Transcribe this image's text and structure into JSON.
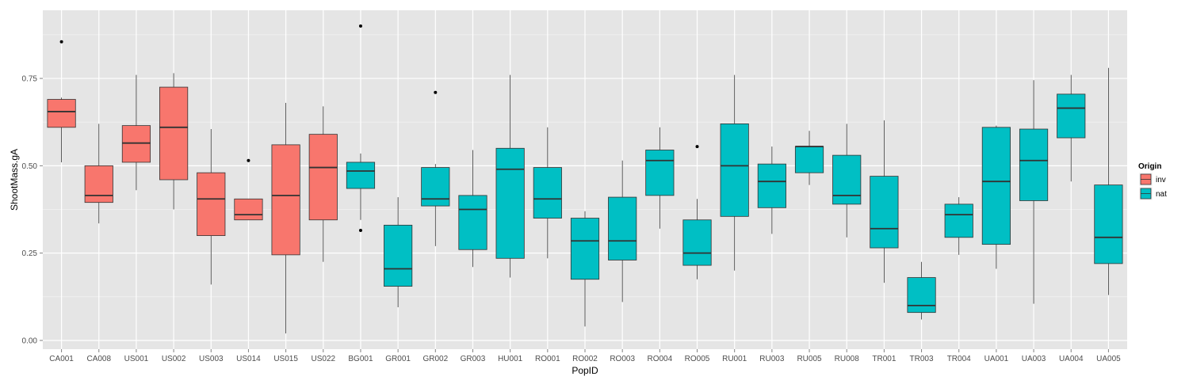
{
  "chart_data": {
    "type": "boxplot",
    "title": "",
    "xlabel": "PopID",
    "ylabel": "ShootMass.gA",
    "ylim": [
      -0.025,
      0.945
    ],
    "yticks": [
      0.0,
      0.25,
      0.5,
      0.75
    ],
    "ytick_labels": [
      "0.00",
      "0.25",
      "0.50",
      "0.75"
    ],
    "grid": true,
    "legend": {
      "title": "Origin",
      "placement": "right",
      "entries": [
        {
          "label": "inv",
          "color": "#F8766D"
        },
        {
          "label": "nat",
          "color": "#00BFC4"
        }
      ]
    },
    "colors": {
      "inv": "#F8766D",
      "nat": "#00BFC4",
      "panel": "#E5E5E5",
      "grid": "#FFFFFF"
    },
    "boxes": [
      {
        "category": "CA001",
        "group": "inv",
        "whisker_low": 0.51,
        "q1": 0.61,
        "median": 0.655,
        "q3": 0.69,
        "whisker_high": 0.695,
        "outliers": [
          0.855
        ]
      },
      {
        "category": "CA008",
        "group": "inv",
        "whisker_low": 0.335,
        "q1": 0.395,
        "median": 0.415,
        "q3": 0.5,
        "whisker_high": 0.62,
        "outliers": []
      },
      {
        "category": "US001",
        "group": "inv",
        "whisker_low": 0.43,
        "q1": 0.51,
        "median": 0.565,
        "q3": 0.615,
        "whisker_high": 0.76,
        "outliers": []
      },
      {
        "category": "US002",
        "group": "inv",
        "whisker_low": 0.375,
        "q1": 0.46,
        "median": 0.61,
        "q3": 0.725,
        "whisker_high": 0.765,
        "outliers": []
      },
      {
        "category": "US003",
        "group": "inv",
        "whisker_low": 0.16,
        "q1": 0.3,
        "median": 0.405,
        "q3": 0.48,
        "whisker_high": 0.605,
        "outliers": []
      },
      {
        "category": "US014",
        "group": "inv",
        "whisker_low": 0.345,
        "q1": 0.345,
        "median": 0.36,
        "q3": 0.405,
        "whisker_high": 0.405,
        "outliers": [
          0.515
        ]
      },
      {
        "category": "US015",
        "group": "inv",
        "whisker_low": 0.02,
        "q1": 0.245,
        "median": 0.415,
        "q3": 0.56,
        "whisker_high": 0.68,
        "outliers": []
      },
      {
        "category": "US022",
        "group": "inv",
        "whisker_low": 0.225,
        "q1": 0.345,
        "median": 0.495,
        "q3": 0.59,
        "whisker_high": 0.67,
        "outliers": []
      },
      {
        "category": "BG001",
        "group": "nat",
        "whisker_low": 0.345,
        "q1": 0.435,
        "median": 0.485,
        "q3": 0.51,
        "whisker_high": 0.535,
        "outliers": [
          0.315,
          0.9
        ]
      },
      {
        "category": "GR001",
        "group": "nat",
        "whisker_low": 0.095,
        "q1": 0.155,
        "median": 0.205,
        "q3": 0.33,
        "whisker_high": 0.41,
        "outliers": []
      },
      {
        "category": "GR002",
        "group": "nat",
        "whisker_low": 0.27,
        "q1": 0.385,
        "median": 0.405,
        "q3": 0.495,
        "whisker_high": 0.505,
        "outliers": [
          0.71
        ]
      },
      {
        "category": "GR003",
        "group": "nat",
        "whisker_low": 0.21,
        "q1": 0.26,
        "median": 0.375,
        "q3": 0.415,
        "whisker_high": 0.545,
        "outliers": []
      },
      {
        "category": "HU001",
        "group": "nat",
        "whisker_low": 0.18,
        "q1": 0.235,
        "median": 0.49,
        "q3": 0.55,
        "whisker_high": 0.76,
        "outliers": []
      },
      {
        "category": "RO001",
        "group": "nat",
        "whisker_low": 0.235,
        "q1": 0.35,
        "median": 0.405,
        "q3": 0.495,
        "whisker_high": 0.61,
        "outliers": []
      },
      {
        "category": "RO002",
        "group": "nat",
        "whisker_low": 0.04,
        "q1": 0.175,
        "median": 0.285,
        "q3": 0.35,
        "whisker_high": 0.37,
        "outliers": []
      },
      {
        "category": "RO003",
        "group": "nat",
        "whisker_low": 0.11,
        "q1": 0.23,
        "median": 0.285,
        "q3": 0.41,
        "whisker_high": 0.515,
        "outliers": []
      },
      {
        "category": "RO004",
        "group": "nat",
        "whisker_low": 0.32,
        "q1": 0.415,
        "median": 0.515,
        "q3": 0.545,
        "whisker_high": 0.61,
        "outliers": []
      },
      {
        "category": "RO005",
        "group": "nat",
        "whisker_low": 0.175,
        "q1": 0.215,
        "median": 0.25,
        "q3": 0.345,
        "whisker_high": 0.405,
        "outliers": [
          0.555
        ]
      },
      {
        "category": "RU001",
        "group": "nat",
        "whisker_low": 0.2,
        "q1": 0.355,
        "median": 0.5,
        "q3": 0.62,
        "whisker_high": 0.76,
        "outliers": []
      },
      {
        "category": "RU003",
        "group": "nat",
        "whisker_low": 0.305,
        "q1": 0.38,
        "median": 0.455,
        "q3": 0.505,
        "whisker_high": 0.555,
        "outliers": []
      },
      {
        "category": "RU005",
        "group": "nat",
        "whisker_low": 0.445,
        "q1": 0.48,
        "median": 0.555,
        "q3": 0.555,
        "whisker_high": 0.6,
        "outliers": []
      },
      {
        "category": "RU008",
        "group": "nat",
        "whisker_low": 0.295,
        "q1": 0.39,
        "median": 0.415,
        "q3": 0.53,
        "whisker_high": 0.62,
        "outliers": []
      },
      {
        "category": "TR001",
        "group": "nat",
        "whisker_low": 0.165,
        "q1": 0.265,
        "median": 0.32,
        "q3": 0.47,
        "whisker_high": 0.63,
        "outliers": []
      },
      {
        "category": "TR003",
        "group": "nat",
        "whisker_low": 0.06,
        "q1": 0.08,
        "median": 0.1,
        "q3": 0.18,
        "whisker_high": 0.225,
        "outliers": []
      },
      {
        "category": "TR004",
        "group": "nat",
        "whisker_low": 0.245,
        "q1": 0.295,
        "median": 0.36,
        "q3": 0.39,
        "whisker_high": 0.41,
        "outliers": []
      },
      {
        "category": "UA001",
        "group": "nat",
        "whisker_low": 0.205,
        "q1": 0.275,
        "median": 0.455,
        "q3": 0.61,
        "whisker_high": 0.615,
        "outliers": []
      },
      {
        "category": "UA003",
        "group": "nat",
        "whisker_low": 0.105,
        "q1": 0.4,
        "median": 0.515,
        "q3": 0.605,
        "whisker_high": 0.745,
        "outliers": []
      },
      {
        "category": "UA004",
        "group": "nat",
        "whisker_low": 0.455,
        "q1": 0.58,
        "median": 0.665,
        "q3": 0.705,
        "whisker_high": 0.76,
        "outliers": []
      },
      {
        "category": "UA005",
        "group": "nat",
        "whisker_low": 0.13,
        "q1": 0.22,
        "median": 0.295,
        "q3": 0.445,
        "whisker_high": 0.78,
        "outliers": []
      }
    ]
  }
}
